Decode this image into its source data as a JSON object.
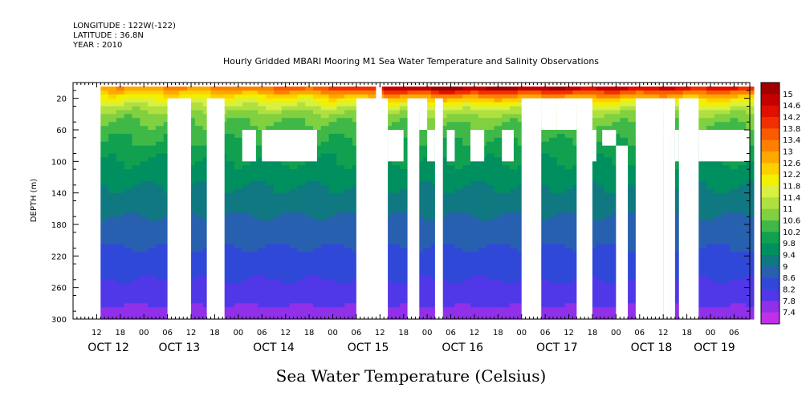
{
  "header": {
    "longitude": "LONGITUDE : 122W(-122)",
    "latitude": "LATITUDE : 36.8N",
    "year": "YEAR : 2010",
    "title": "Hourly Gridded MBARI Mooring M1 Sea Water Temperature and Salinity Observations"
  },
  "chart_data": {
    "type": "heatmap",
    "title": "Hourly Gridded MBARI Mooring M1 Sea Water Temperature and Salinity Observations",
    "xlabel": "",
    "ylabel": "DEPTH (m)",
    "colorbar_label": "Sea Water Temperature (Celsius)",
    "x_start": "OCT 12 06:00",
    "x_end": "OCT 19 10:00",
    "x_hour_range": [
      6,
      178
    ],
    "x_ticks": [
      {
        "h": 12,
        "label": "12"
      },
      {
        "h": 18,
        "label": "18"
      },
      {
        "h": 24,
        "label": "00"
      },
      {
        "h": 30,
        "label": "06"
      },
      {
        "h": 36,
        "label": "12"
      },
      {
        "h": 42,
        "label": "18"
      },
      {
        "h": 48,
        "label": "00"
      },
      {
        "h": 54,
        "label": "06"
      },
      {
        "h": 60,
        "label": "12"
      },
      {
        "h": 66,
        "label": "18"
      },
      {
        "h": 72,
        "label": "00"
      },
      {
        "h": 78,
        "label": "06"
      },
      {
        "h": 84,
        "label": "12"
      },
      {
        "h": 90,
        "label": "18"
      },
      {
        "h": 96,
        "label": "00"
      },
      {
        "h": 102,
        "label": "06"
      },
      {
        "h": 108,
        "label": "12"
      },
      {
        "h": 114,
        "label": "18"
      },
      {
        "h": 120,
        "label": "00"
      },
      {
        "h": 126,
        "label": "06"
      },
      {
        "h": 132,
        "label": "12"
      },
      {
        "h": 138,
        "label": "18"
      },
      {
        "h": 144,
        "label": "00"
      },
      {
        "h": 150,
        "label": "06"
      },
      {
        "h": 156,
        "label": "12"
      },
      {
        "h": 162,
        "label": "18"
      },
      {
        "h": 168,
        "label": "00"
      },
      {
        "h": 174,
        "label": "06"
      }
    ],
    "x_days": [
      {
        "h": 15,
        "label": "OCT 12"
      },
      {
        "h": 33,
        "label": "OCT 13"
      },
      {
        "h": 57,
        "label": "OCT 14"
      },
      {
        "h": 81,
        "label": "OCT 15"
      },
      {
        "h": 105,
        "label": "OCT 16"
      },
      {
        "h": 129,
        "label": "OCT 17"
      },
      {
        "h": 153,
        "label": "OCT 18"
      },
      {
        "h": 169,
        "label": "OCT 19"
      }
    ],
    "y_range": [
      0,
      300
    ],
    "y_reversed": true,
    "y_ticks": [
      20,
      60,
      100,
      140,
      180,
      220,
      260,
      300
    ],
    "data_start_hour": 13,
    "colorbar": {
      "labels": [
        "15",
        "14.6",
        "14.2",
        "13.8",
        "13.4",
        "13",
        "12.6",
        "12.2",
        "11.8",
        "11.4",
        "11",
        "10.6",
        "10.2",
        "9.8",
        "9.4",
        "9",
        "8.6",
        "8.2",
        "7.8",
        "7.4"
      ],
      "levels": [
        15,
        14.6,
        14.2,
        13.8,
        13.4,
        13,
        12.6,
        12.2,
        11.8,
        11.4,
        11,
        10.6,
        10.2,
        9.8,
        9.4,
        9,
        8.6,
        8.2,
        7.8,
        7.4
      ],
      "colors": [
        "#a00000",
        "#c40000",
        "#e01000",
        "#f03000",
        "#fa5a00",
        "#ff8000",
        "#ffa800",
        "#ffd000",
        "#f0f000",
        "#d8f040",
        "#b0e040",
        "#80d040",
        "#40b848",
        "#10a050",
        "#009060",
        "#107880",
        "#2860b0",
        "#3048d8",
        "#5038e8",
        "#9030e8",
        "#c030e8"
      ]
    },
    "temperature_profile": {
      "depths": [
        5,
        20,
        40,
        60,
        100,
        140,
        180,
        220,
        260,
        300
      ],
      "values": [
        13.0,
        11.8,
        10.8,
        10.4,
        9.8,
        9.3,
        8.9,
        8.5,
        8.1,
        7.6
      ]
    },
    "surface_warming": [
      {
        "h": 13,
        "dt": 0.0
      },
      {
        "h": 40,
        "dt": 0.3
      },
      {
        "h": 60,
        "dt": 0.8
      },
      {
        "h": 75,
        "dt": 1.2
      },
      {
        "h": 85,
        "dt": 2.2
      },
      {
        "h": 100,
        "dt": 2.8
      },
      {
        "h": 130,
        "dt": 2.4
      },
      {
        "h": 150,
        "dt": 2.0
      },
      {
        "h": 178,
        "dt": 1.6
      }
    ],
    "missing_blocks": [
      {
        "h0": 30,
        "h1": 36,
        "z0": 20,
        "z1": 300
      },
      {
        "h0": 40,
        "h1": 44.5,
        "z0": 20,
        "z1": 300
      },
      {
        "h0": 49,
        "h1": 52.5,
        "z0": 60,
        "z1": 100
      },
      {
        "h0": 54,
        "h1": 68,
        "z0": 60,
        "z1": 100
      },
      {
        "h0": 78,
        "h1": 86,
        "z0": 20,
        "z1": 300
      },
      {
        "h0": 83,
        "h1": 84.5,
        "z0": 0,
        "z1": 20
      },
      {
        "h0": 86,
        "h1": 90,
        "z0": 60,
        "z1": 100
      },
      {
        "h0": 91,
        "h1": 94,
        "z0": 20,
        "z1": 300
      },
      {
        "h0": 94,
        "h1": 96,
        "z0": 20,
        "z1": 60
      },
      {
        "h0": 96,
        "h1": 98,
        "z0": 60,
        "z1": 100
      },
      {
        "h0": 98,
        "h1": 100,
        "z0": 20,
        "z1": 300
      },
      {
        "h0": 101,
        "h1": 103,
        "z0": 60,
        "z1": 100
      },
      {
        "h0": 107,
        "h1": 110.5,
        "z0": 60,
        "z1": 100
      },
      {
        "h0": 115,
        "h1": 118,
        "z0": 60,
        "z1": 100
      },
      {
        "h0": 120,
        "h1": 125,
        "z0": 20,
        "z1": 300
      },
      {
        "h0": 125,
        "h1": 129,
        "z0": 20,
        "z1": 60
      },
      {
        "h0": 129,
        "h1": 134,
        "z0": 20,
        "z1": 60
      },
      {
        "h0": 134,
        "h1": 138,
        "z0": 20,
        "z1": 300
      },
      {
        "h0": 138,
        "h1": 139,
        "z0": 60,
        "z1": 100
      },
      {
        "h0": 140.5,
        "h1": 144,
        "z0": 60,
        "z1": 80
      },
      {
        "h0": 144,
        "h1": 147,
        "z0": 80,
        "z1": 300
      },
      {
        "h0": 149,
        "h1": 156,
        "z0": 20,
        "z1": 300
      },
      {
        "h0": 151,
        "h1": 153,
        "z0": 80,
        "z1": 100
      },
      {
        "h0": 153,
        "h1": 156,
        "z0": 60,
        "z1": 100
      },
      {
        "h0": 156,
        "h1": 158,
        "z0": 20,
        "z1": 300
      },
      {
        "h0": 158,
        "h1": 159,
        "z0": 20,
        "z1": 300
      },
      {
        "h0": 159,
        "h1": 160,
        "z0": 60,
        "z1": 100
      },
      {
        "h0": 160,
        "h1": 165,
        "z0": 20,
        "z1": 300
      },
      {
        "h0": 165,
        "h1": 178,
        "z0": 60,
        "z1": 100
      }
    ]
  }
}
